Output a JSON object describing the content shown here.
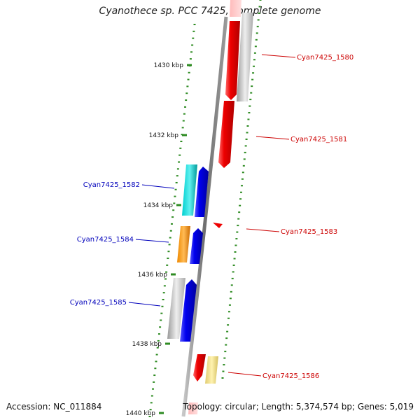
{
  "title": "Cyanothece sp. PCC 7425, complete genome",
  "footer": {
    "accession": "Accession: NC_011884",
    "summary": "Topology: circular; Length: 5,374,574 bp; Genes: 5,019"
  },
  "colors": {
    "backbone": "#7a7a7a",
    "dots": "#2e8b22",
    "forward_label": "#cc0000",
    "reverse_label": "#0000bb",
    "red_gene": "#ee0000",
    "blue_gene": "#0000ee",
    "cyan_gene": "#00b5b5",
    "orange_gene": "#ee8800",
    "gray_gene": "#a8a8a8",
    "yellow_gene": "#eedd88"
  },
  "scale": {
    "unit": "kbp",
    "ticks": [
      {
        "kbp": 1430,
        "label": "1430 kbp"
      },
      {
        "kbp": 1432,
        "label": "1432 kbp"
      },
      {
        "kbp": 1434,
        "label": "1434 kbp"
      },
      {
        "kbp": 1436,
        "label": "1436 kbp"
      },
      {
        "kbp": 1438,
        "label": "1438 kbp"
      },
      {
        "kbp": 1440,
        "label": "1440 kbp"
      }
    ]
  },
  "genes_labeled": [
    {
      "name": "Cyan7425_1580",
      "strand": "forward"
    },
    {
      "name": "Cyan7425_1581",
      "strand": "forward"
    },
    {
      "name": "Cyan7425_1583",
      "strand": "forward"
    },
    {
      "name": "Cyan7425_1586",
      "strand": "forward"
    },
    {
      "name": "Cyan7425_1582",
      "strand": "reverse"
    },
    {
      "name": "Cyan7425_1584",
      "strand": "reverse"
    },
    {
      "name": "Cyan7425_1585",
      "strand": "reverse"
    }
  ]
}
